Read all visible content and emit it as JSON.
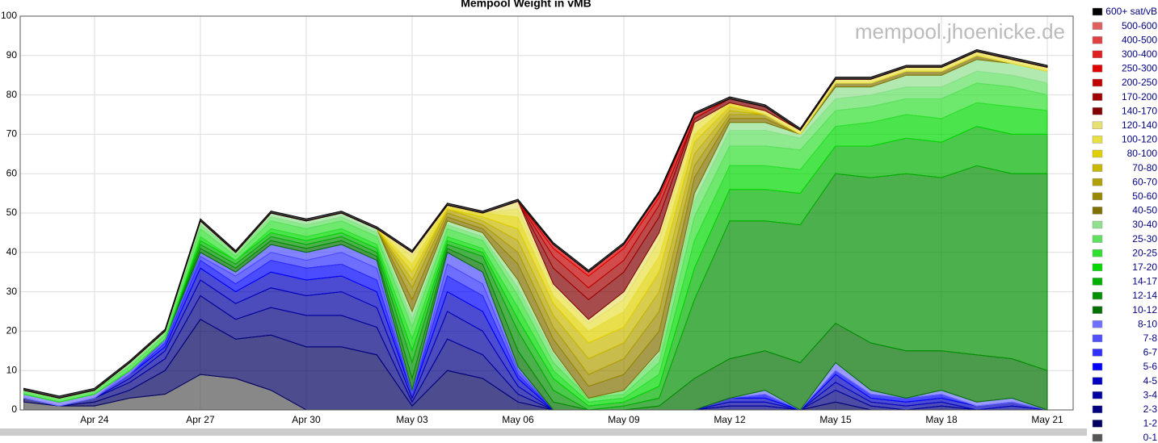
{
  "chart_data": {
    "type": "stacked-area",
    "title": "Mempool Weight in vMB",
    "watermark": "mempool.jhoenicke.de",
    "categories": [
      null,
      null,
      "Apr 24",
      null,
      null,
      "Apr 27",
      null,
      null,
      "Apr 30",
      null,
      null,
      "May 03",
      null,
      null,
      "May 06",
      null,
      null,
      "May 09",
      null,
      null,
      "May 12",
      null,
      null,
      "May 15",
      null,
      null,
      "May 18",
      null,
      null,
      "May 21"
    ],
    "ylim": [
      0,
      100
    ],
    "yticks": [
      0,
      10,
      20,
      30,
      40,
      50,
      60,
      70,
      80,
      90,
      100
    ],
    "grid": true,
    "legend": "right",
    "series": [
      {
        "name": "0-1",
        "color": "#555555",
        "values": [
          2,
          1,
          1,
          3,
          4,
          9,
          8,
          5,
          0,
          0,
          0,
          0,
          0,
          0,
          0,
          0,
          0,
          0,
          0,
          0,
          0,
          0,
          0,
          0,
          0,
          0,
          0,
          0,
          0,
          0
        ]
      },
      {
        "name": "1-2",
        "color": "#000060",
        "values": [
          1,
          0,
          1,
          2,
          6,
          14,
          10,
          14,
          16,
          16,
          14,
          1,
          10,
          8,
          2,
          0,
          0,
          0,
          0,
          0,
          0,
          0,
          0,
          2,
          0,
          0,
          0,
          0,
          0,
          0
        ]
      },
      {
        "name": "2-3",
        "color": "#000080",
        "values": [
          0,
          0,
          1,
          2,
          3,
          6,
          5,
          7,
          8,
          8,
          7,
          1,
          8,
          6,
          2,
          0,
          0,
          0,
          0,
          0,
          1,
          1,
          0,
          3,
          1,
          0,
          1,
          0,
          0,
          0
        ]
      },
      {
        "name": "3-4",
        "color": "#0000a0",
        "values": [
          0,
          0,
          0,
          1,
          2,
          4,
          4,
          5,
          5,
          6,
          5,
          1,
          7,
          6,
          2,
          0,
          0,
          0,
          0,
          0,
          1,
          1,
          0,
          2,
          1,
          1,
          1,
          0,
          1,
          0
        ]
      },
      {
        "name": "4-5",
        "color": "#0000c0",
        "values": [
          0,
          0,
          0,
          1,
          1,
          3,
          3,
          4,
          4,
          4,
          4,
          1,
          5,
          5,
          2,
          0,
          0,
          0,
          0,
          0,
          1,
          1,
          0,
          2,
          1,
          1,
          1,
          1,
          1,
          0
        ]
      },
      {
        "name": "5-6",
        "color": "#0000ff",
        "values": [
          0,
          0,
          0,
          0,
          1,
          2,
          2,
          3,
          3,
          3,
          3,
          0,
          4,
          4,
          1,
          0,
          0,
          0,
          0,
          0,
          0,
          1,
          0,
          1,
          1,
          1,
          1,
          0,
          0,
          0
        ]
      },
      {
        "name": "6-7",
        "color": "#3030ff",
        "values": [
          0,
          0,
          0,
          0,
          1,
          1,
          2,
          2,
          2,
          3,
          3,
          0,
          3,
          3,
          1,
          0,
          0,
          0,
          0,
          0,
          0,
          0,
          0,
          0,
          0,
          0,
          0,
          0,
          0,
          0
        ]
      },
      {
        "name": "7-8",
        "color": "#5050ff",
        "values": [
          0,
          0,
          0,
          1,
          0,
          1,
          1,
          2,
          2,
          2,
          2,
          1,
          3,
          3,
          1,
          0,
          0,
          0,
          0,
          0,
          0,
          0,
          0,
          0,
          0,
          0,
          0,
          0,
          0,
          0
        ]
      },
      {
        "name": "8-10",
        "color": "#7070ff",
        "values": [
          1,
          1,
          1,
          0,
          0,
          0,
          0,
          0,
          0,
          0,
          0,
          0,
          0,
          0,
          0,
          0,
          0,
          0,
          0,
          0,
          0,
          1,
          0,
          2,
          1,
          0,
          1,
          1,
          1,
          0
        ]
      },
      {
        "name": "10-12",
        "color": "#007000",
        "values": [
          0,
          0,
          0,
          0,
          0,
          1,
          1,
          1,
          1,
          1,
          1,
          3,
          1,
          2,
          4,
          2,
          0,
          0,
          1,
          8,
          10,
          10,
          12,
          10,
          12,
          12,
          10,
          12,
          10,
          10
        ]
      },
      {
        "name": "12-14",
        "color": "#009000",
        "values": [
          0,
          0,
          0,
          0,
          0,
          1,
          1,
          1,
          1,
          1,
          1,
          4,
          1,
          2,
          5,
          3,
          0,
          1,
          2,
          20,
          35,
          33,
          35,
          38,
          42,
          45,
          44,
          48,
          47,
          50
        ]
      },
      {
        "name": "14-17",
        "color": "#00b000",
        "values": [
          0,
          0,
          0,
          0,
          0,
          1,
          1,
          1,
          1,
          1,
          1,
          3,
          1,
          1,
          3,
          3,
          1,
          1,
          3,
          8,
          8,
          8,
          8,
          7,
          8,
          9,
          9,
          10,
          10,
          10
        ]
      },
      {
        "name": "17-20",
        "color": "#00d800",
        "values": [
          0,
          0,
          0,
          0,
          0,
          1,
          0,
          1,
          1,
          1,
          1,
          3,
          1,
          1,
          3,
          2,
          1,
          1,
          3,
          7,
          6,
          6,
          6,
          5,
          6,
          6,
          6,
          6,
          7,
          6
        ]
      },
      {
        "name": "20-25",
        "color": "#30e030",
        "values": [
          1,
          1,
          1,
          1,
          1,
          2,
          1,
          2,
          2,
          2,
          2,
          3,
          2,
          2,
          3,
          2,
          1,
          1,
          3,
          6,
          5,
          5,
          5,
          4,
          4,
          4,
          5,
          5,
          5,
          4
        ]
      },
      {
        "name": "25-30",
        "color": "#60e060",
        "values": [
          0,
          0,
          0,
          1,
          1,
          1,
          1,
          1,
          1,
          1,
          1,
          2,
          1,
          1,
          2,
          2,
          0,
          1,
          2,
          4,
          4,
          4,
          3,
          3,
          3,
          3,
          3,
          3,
          3,
          3
        ]
      },
      {
        "name": "30-40",
        "color": "#90e090",
        "values": [
          0,
          0,
          0,
          0,
          0,
          1,
          0,
          1,
          1,
          1,
          1,
          2,
          1,
          1,
          2,
          1,
          0,
          0,
          1,
          2,
          2,
          2,
          1,
          3,
          2,
          3,
          3,
          3,
          3,
          3
        ]
      },
      {
        "name": "40-50",
        "color": "#807000",
        "values": [
          0,
          0,
          0,
          0,
          0,
          0,
          0,
          0,
          0,
          0,
          0,
          3,
          1,
          1,
          4,
          3,
          3,
          4,
          5,
          4,
          1,
          1,
          0,
          1,
          1,
          1,
          1,
          1,
          0,
          0
        ]
      },
      {
        "name": "50-60",
        "color": "#988800",
        "values": [
          0,
          0,
          0,
          0,
          0,
          0,
          0,
          0,
          0,
          0,
          0,
          3,
          1,
          1,
          3,
          3,
          3,
          4,
          5,
          3,
          1,
          1,
          0,
          0,
          0,
          0,
          0,
          0,
          0,
          0
        ]
      },
      {
        "name": "60-70",
        "color": "#b0a000",
        "values": [
          0,
          0,
          0,
          0,
          0,
          0,
          0,
          0,
          0,
          0,
          0,
          2,
          1,
          1,
          3,
          3,
          4,
          4,
          5,
          3,
          1,
          0,
          0,
          0,
          0,
          0,
          0,
          0,
          0,
          0
        ]
      },
      {
        "name": "70-80",
        "color": "#c8b800",
        "values": [
          0,
          0,
          0,
          0,
          0,
          0,
          0,
          0,
          0,
          0,
          0,
          2,
          0,
          1,
          3,
          3,
          4,
          4,
          5,
          3,
          1,
          0,
          0,
          0,
          0,
          0,
          0,
          0,
          0,
          0
        ]
      },
      {
        "name": "80-100",
        "color": "#e0d000",
        "values": [
          0,
          0,
          0,
          0,
          0,
          0,
          0,
          0,
          0,
          0,
          0,
          2,
          1,
          1,
          3,
          2,
          3,
          4,
          4,
          2,
          1,
          0,
          0,
          0,
          0,
          0,
          0,
          0,
          0,
          0
        ]
      },
      {
        "name": "100-120",
        "color": "#e8e040",
        "values": [
          0,
          0,
          0,
          0,
          0,
          0,
          0,
          0,
          0,
          0,
          0,
          2,
          0,
          0,
          2,
          2,
          2,
          3,
          4,
          2,
          0,
          1,
          1,
          1,
          1,
          1,
          1,
          1,
          1,
          1
        ]
      },
      {
        "name": "120-140",
        "color": "#e8e070",
        "values": [
          0,
          0,
          0,
          0,
          0,
          0,
          0,
          0,
          0,
          0,
          0,
          1,
          0,
          0,
          2,
          1,
          1,
          2,
          2,
          1,
          0,
          0,
          0,
          0,
          0,
          0,
          0,
          0,
          0,
          0
        ]
      },
      {
        "name": "140-170",
        "color": "#800000",
        "values": [
          0,
          0,
          0,
          0,
          0,
          0,
          0,
          0,
          0,
          0,
          0,
          0,
          0,
          0,
          0,
          4,
          5,
          5,
          4,
          1,
          1,
          1,
          0,
          0,
          0,
          0,
          0,
          0,
          0,
          0
        ]
      },
      {
        "name": "170-200",
        "color": "#a00000",
        "values": [
          0,
          0,
          0,
          0,
          0,
          0,
          0,
          0,
          0,
          0,
          0,
          0,
          0,
          0,
          0,
          3,
          3,
          3,
          3,
          0,
          0,
          0,
          0,
          0,
          0,
          0,
          0,
          0,
          0,
          0
        ]
      },
      {
        "name": "200-250",
        "color": "#c00000",
        "values": [
          0,
          0,
          0,
          0,
          0,
          0,
          0,
          0,
          0,
          0,
          0,
          0,
          0,
          0,
          0,
          2,
          3,
          3,
          2,
          1,
          0,
          0,
          0,
          0,
          0,
          0,
          0,
          0,
          0,
          0
        ]
      },
      {
        "name": "250-300",
        "color": "#e00000",
        "values": [
          0,
          0,
          0,
          0,
          0,
          0,
          0,
          0,
          0,
          0,
          0,
          0,
          0,
          0,
          0,
          1,
          1,
          1,
          1,
          0,
          0,
          0,
          0,
          0,
          0,
          0,
          0,
          0,
          0,
          0
        ]
      },
      {
        "name": "300-400",
        "color": "#e02020",
        "values": [
          0,
          0,
          0,
          0,
          0,
          0,
          0,
          0,
          0,
          0,
          0,
          0,
          0,
          0,
          0,
          0,
          0,
          0,
          0,
          0,
          0,
          0,
          0,
          0,
          0,
          0,
          0,
          0,
          0,
          0
        ]
      },
      {
        "name": "400-500",
        "color": "#e04040",
        "values": [
          0,
          0,
          0,
          0,
          0,
          0,
          0,
          0,
          0,
          0,
          0,
          0,
          0,
          0,
          0,
          0,
          0,
          0,
          0,
          0,
          0,
          0,
          0,
          0,
          0,
          0,
          0,
          0,
          0,
          0
        ]
      },
      {
        "name": "500-600",
        "color": "#e06060",
        "values": [
          0,
          0,
          0,
          0,
          0,
          0,
          0,
          0,
          0,
          0,
          0,
          0,
          0,
          0,
          0,
          0,
          0,
          0,
          0,
          0,
          0,
          0,
          0,
          0,
          0,
          0,
          0,
          0,
          0,
          0
        ]
      },
      {
        "name": "600+ sat/vB",
        "color": "#000000",
        "values": [
          0.5,
          0.5,
          0.5,
          0.5,
          0.5,
          0.5,
          0.5,
          0.5,
          0.5,
          0.5,
          0.5,
          0.5,
          0.5,
          0.5,
          0.5,
          0.5,
          0.5,
          0.5,
          0.5,
          0.5,
          0.5,
          0.5,
          0.5,
          0.5,
          0.5,
          0.5,
          0.5,
          0.5,
          0.5,
          0.5
        ]
      }
    ]
  }
}
